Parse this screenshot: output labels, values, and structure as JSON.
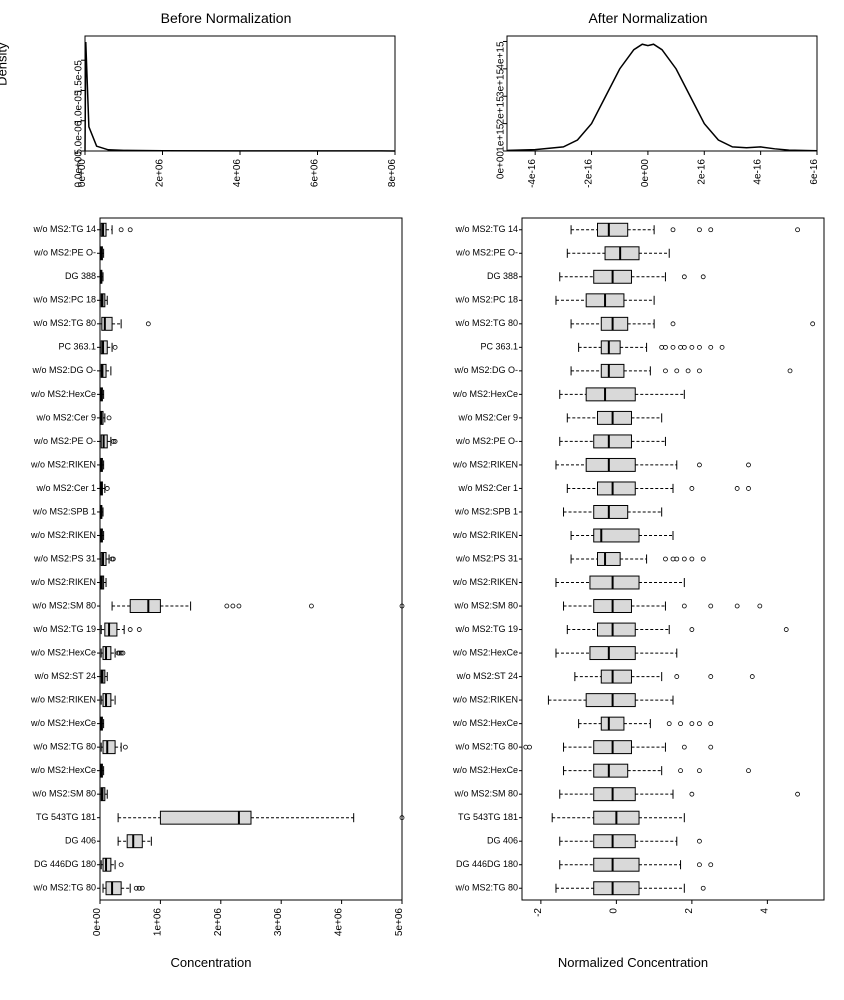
{
  "titles": {
    "before": "Before Normalization",
    "after": "After Normalization",
    "density_y": "Density",
    "concentration": "Concentration",
    "normalized": "Normalized Concentration"
  },
  "density_before": {
    "type": "line",
    "xlim": [
      0,
      8000000.0
    ],
    "ylim": [
      0,
      1.9e-05
    ],
    "xticks": [
      "0e+00",
      "2e+06",
      "4e+06",
      "6e+06",
      "8e+06"
    ],
    "yticks": [
      "0.0e+00",
      "5.0e-06",
      "1.0e-05",
      "1.5e-05"
    ],
    "ytick_vals": [
      0,
      5e-06,
      1e-05,
      1.5e-05
    ],
    "xtick_vals": [
      0,
      2000000.0,
      4000000.0,
      6000000.0,
      8000000.0
    ],
    "points": [
      [
        0,
        0
      ],
      [
        20000.0,
        1.8e-05
      ],
      [
        100000.0,
        4e-06
      ],
      [
        300000.0,
        8e-07
      ],
      [
        600000.0,
        2e-07
      ],
      [
        1000000.0,
        1e-07
      ],
      [
        2000000.0,
        5e-08
      ],
      [
        4000000.0,
        2e-08
      ],
      [
        8000000.0,
        1e-08
      ]
    ],
    "line_color": "#000000",
    "background_color": "#ffffff"
  },
  "density_after": {
    "type": "line",
    "xlim": [
      -5e-16,
      6e-16
    ],
    "ylim": [
      0,
      4200000000000000.0
    ],
    "xticks": [
      "-4e-16",
      "-2e-16",
      "0e+00",
      "2e-16",
      "4e-16",
      "6e-16"
    ],
    "xtick_vals": [
      -4e-16,
      -2e-16,
      0,
      2e-16,
      4e-16,
      6e-16
    ],
    "yticks": [
      "0e+00",
      "1e+15",
      "2e+15",
      "3e+15",
      "4e+15"
    ],
    "ytick_vals": [
      0,
      1000000000000000.0,
      2000000000000000.0,
      3000000000000000.0,
      4000000000000000.0
    ],
    "points": [
      [
        -5e-16,
        20000000000000.0
      ],
      [
        -4e-16,
        50000000000000.0
      ],
      [
        -3e-16,
        150000000000000.0
      ],
      [
        -2.5e-16,
        400000000000000.0
      ],
      [
        -2e-16,
        1000000000000000.0
      ],
      [
        -1.5e-16,
        2000000000000000.0
      ],
      [
        -1e-16,
        3000000000000000.0
      ],
      [
        -5e-17,
        3700000000000000.0
      ],
      [
        -2e-17,
        3900000000000000.0
      ],
      [
        0,
        3850000000000000.0
      ],
      [
        2e-17,
        3900000000000000.0
      ],
      [
        5e-17,
        3700000000000000.0
      ],
      [
        1e-16,
        3000000000000000.0
      ],
      [
        1.5e-16,
        2000000000000000.0
      ],
      [
        2e-16,
        1000000000000000.0
      ],
      [
        2.5e-16,
        400000000000000.0
      ],
      [
        3e-16,
        150000000000000.0
      ],
      [
        3.5e-16,
        120000000000000.0
      ],
      [
        4e-16,
        150000000000000.0
      ],
      [
        4.5e-16,
        80000000000000.0
      ],
      [
        5e-16,
        30000000000000.0
      ],
      [
        6e-16,
        10000000000000.0
      ]
    ],
    "line_color": "#000000",
    "background_color": "#ffffff"
  },
  "boxplot_before": {
    "type": "boxplot",
    "xlim": [
      0,
      5000000.0
    ],
    "xticks": [
      "0e+00",
      "1e+06",
      "2e+06",
      "3e+06",
      "4e+06",
      "5e+06"
    ],
    "xtick_vals": [
      0,
      1000000.0,
      2000000.0,
      3000000.0,
      4000000.0,
      5000000.0
    ],
    "box_fill": "#d9d9d9",
    "categories": [
      "w/o MS2:TG 14",
      "w/o MS2:PE O-",
      "DG 388",
      "w/o MS2:PC 18",
      "w/o MS2:TG 80",
      "PC 363.1",
      "w/o MS2:DG O-",
      "w/o MS2:HexCe",
      "w/o MS2:Cer 9",
      "w/o MS2:PE O-",
      "w/o MS2:RIKEN",
      "w/o MS2:Cer 1",
      "w/o MS2:SPB 1",
      "w/o MS2:RIKEN",
      "w/o MS2:PS 31",
      "w/o MS2:RIKEN",
      "w/o MS2:SM 80",
      "w/o MS2:TG 19",
      "w/o MS2:HexCe",
      "w/o MS2:ST 24",
      "w/o MS2:RIKEN",
      "w/o MS2:HexCe",
      "w/o MS2:TG 80",
      "w/o MS2:HexCe",
      "w/o MS2:SM 80",
      "TG 543TG 181",
      "DG 406",
      "DG 446DG 180",
      "w/o MS2:TG 80"
    ],
    "boxes": [
      {
        "q1": 20000.0,
        "med": 50000.0,
        "q3": 100000.0,
        "lw": 0,
        "uw": 200000.0,
        "out": [
          350000.0,
          500000.0
        ]
      },
      {
        "q1": 10000.0,
        "med": 20000.0,
        "q3": 40000.0,
        "lw": 0,
        "uw": 60000.0,
        "out": []
      },
      {
        "q1": 10000.0,
        "med": 20000.0,
        "q3": 30000.0,
        "lw": 0,
        "uw": 50000.0,
        "out": []
      },
      {
        "q1": 20000.0,
        "med": 40000.0,
        "q3": 80000.0,
        "lw": 0,
        "uw": 120000.0,
        "out": []
      },
      {
        "q1": 30000.0,
        "med": 80000.0,
        "q3": 200000.0,
        "lw": 0,
        "uw": 350000.0,
        "out": [
          800000.0
        ]
      },
      {
        "q1": 20000.0,
        "med": 50000.0,
        "q3": 120000.0,
        "lw": 0,
        "uw": 200000.0,
        "out": [
          250000.0
        ]
      },
      {
        "q1": 20000.0,
        "med": 40000.0,
        "q3": 100000.0,
        "lw": 0,
        "uw": 180000.0,
        "out": []
      },
      {
        "q1": 10000.0,
        "med": 20000.0,
        "q3": 40000.0,
        "lw": 0,
        "uw": 60000.0,
        "out": []
      },
      {
        "q1": 10000.0,
        "med": 20000.0,
        "q3": 50000.0,
        "lw": 0,
        "uw": 80000.0,
        "out": [
          150000.0
        ]
      },
      {
        "q1": 20000.0,
        "med": 60000.0,
        "q3": 120000.0,
        "lw": 0,
        "uw": 180000.0,
        "out": [
          220000.0,
          250000.0
        ]
      },
      {
        "q1": 10000.0,
        "med": 20000.0,
        "q3": 40000.0,
        "lw": 0,
        "uw": 60000.0,
        "out": []
      },
      {
        "q1": 10000.0,
        "med": 20000.0,
        "q3": 40000.0,
        "lw": 0,
        "uw": 80000.0,
        "out": [
          120000.0
        ]
      },
      {
        "q1": 10000.0,
        "med": 20000.0,
        "q3": 30000.0,
        "lw": 0,
        "uw": 50000.0,
        "out": []
      },
      {
        "q1": 10000.0,
        "med": 20000.0,
        "q3": 40000.0,
        "lw": 0,
        "uw": 60000.0,
        "out": []
      },
      {
        "q1": 20000.0,
        "med": 50000.0,
        "q3": 100000.0,
        "lw": 0,
        "uw": 150000.0,
        "out": [
          200000.0,
          220000.0
        ]
      },
      {
        "q1": 10000.0,
        "med": 30000.0,
        "q3": 60000.0,
        "lw": 0,
        "uw": 100000.0,
        "out": []
      },
      {
        "q1": 500000.0,
        "med": 800000.0,
        "q3": 1000000.0,
        "lw": 200000.0,
        "uw": 1500000.0,
        "out": [
          2100000.0,
          2200000.0,
          2300000.0,
          3500000.0,
          5000000.0
        ]
      },
      {
        "q1": 80000.0,
        "med": 150000.0,
        "q3": 280000.0,
        "lw": 20000.0,
        "uw": 400000.0,
        "out": [
          500000.0,
          650000.0
        ]
      },
      {
        "q1": 50000.0,
        "med": 100000.0,
        "q3": 180000.0,
        "lw": 20000.0,
        "uw": 250000.0,
        "out": [
          300000.0,
          320000.0,
          350000.0,
          380000.0
        ]
      },
      {
        "q1": 20000.0,
        "med": 40000.0,
        "q3": 80000.0,
        "lw": 0,
        "uw": 120000.0,
        "out": []
      },
      {
        "q1": 50000.0,
        "med": 100000.0,
        "q3": 180000.0,
        "lw": 20000.0,
        "uw": 250000.0,
        "out": []
      },
      {
        "q1": 10000.0,
        "med": 20000.0,
        "q3": 40000.0,
        "lw": 0,
        "uw": 60000.0,
        "out": []
      },
      {
        "q1": 50000.0,
        "med": 120000.0,
        "q3": 250000.0,
        "lw": 20000.0,
        "uw": 350000.0,
        "out": [
          420000.0
        ]
      },
      {
        "q1": 10000.0,
        "med": 20000.0,
        "q3": 40000.0,
        "lw": 0,
        "uw": 60000.0,
        "out": []
      },
      {
        "q1": 20000.0,
        "med": 40000.0,
        "q3": 80000.0,
        "lw": 0,
        "uw": 120000.0,
        "out": []
      },
      {
        "q1": 1000000.0,
        "med": 2300000.0,
        "q3": 2500000.0,
        "lw": 300000.0,
        "uw": 4200000.0,
        "out": [
          5000000.0
        ]
      },
      {
        "q1": 450000.0,
        "med": 550000.0,
        "q3": 700000.0,
        "lw": 300000.0,
        "uw": 850000.0,
        "out": []
      },
      {
        "q1": 50000.0,
        "med": 100000.0,
        "q3": 180000.0,
        "lw": 20000.0,
        "uw": 250000.0,
        "out": [
          350000.0
        ]
      },
      {
        "q1": 100000.0,
        "med": 200000.0,
        "q3": 350000.0,
        "lw": 50000.0,
        "uw": 500000.0,
        "out": [
          600000.0,
          650000.0,
          700000.0
        ]
      }
    ]
  },
  "boxplot_after": {
    "type": "boxplot",
    "xlim": [
      -2.5,
      5.5
    ],
    "xticks": [
      "-2",
      "0",
      "2",
      "4"
    ],
    "xtick_vals": [
      -2,
      0,
      2,
      4
    ],
    "box_fill": "#d9d9d9",
    "categories": [
      "w/o MS2:TG 14",
      "w/o MS2:PE O-",
      "DG 388",
      "w/o MS2:PC 18",
      "w/o MS2:TG 80",
      "PC 363.1",
      "w/o MS2:DG O-",
      "w/o MS2:HexCe",
      "w/o MS2:Cer 9",
      "w/o MS2:PE O-",
      "w/o MS2:RIKEN",
      "w/o MS2:Cer 1",
      "w/o MS2:SPB 1",
      "w/o MS2:RIKEN",
      "w/o MS2:PS 31",
      "w/o MS2:RIKEN",
      "w/o MS2:SM 80",
      "w/o MS2:TG 19",
      "w/o MS2:HexCe",
      "w/o MS2:ST 24",
      "w/o MS2:RIKEN",
      "w/o MS2:HexCe",
      "w/o MS2:TG 80",
      "w/o MS2:HexCe",
      "w/o MS2:SM 80",
      "TG 543TG 181",
      "DG 406",
      "DG 446DG 180",
      "w/o MS2:TG 80"
    ],
    "boxes": [
      {
        "q1": -0.5,
        "med": -0.2,
        "q3": 0.3,
        "lw": -1.2,
        "uw": 1,
        "out": [
          1.5,
          2.2,
          2.5,
          4.8
        ]
      },
      {
        "q1": -0.3,
        "med": 0.1,
        "q3": 0.6,
        "lw": -1.3,
        "uw": 1.4,
        "out": []
      },
      {
        "q1": -0.6,
        "med": -0.1,
        "q3": 0.4,
        "lw": -1.5,
        "uw": 1.3,
        "out": [
          1.8,
          2.3
        ]
      },
      {
        "q1": -0.8,
        "med": -0.3,
        "q3": 0.2,
        "lw": -1.6,
        "uw": 1,
        "out": []
      },
      {
        "q1": -0.4,
        "med": -0.1,
        "q3": 0.3,
        "lw": -1.2,
        "uw": 1,
        "out": [
          1.5,
          5.2
        ]
      },
      {
        "q1": -0.4,
        "med": -0.2,
        "q3": 0.1,
        "lw": -1,
        "uw": 0.8,
        "out": [
          1.2,
          1.3,
          1.5,
          1.7,
          1.8,
          2,
          2.2,
          2.5,
          2.8
        ]
      },
      {
        "q1": -0.4,
        "med": -0.2,
        "q3": 0.2,
        "lw": -1.2,
        "uw": 0.9,
        "out": [
          1.3,
          1.6,
          1.9,
          2.2,
          4.6
        ]
      },
      {
        "q1": -0.8,
        "med": -0.3,
        "q3": 0.5,
        "lw": -1.5,
        "uw": 1.8,
        "out": []
      },
      {
        "q1": -0.5,
        "med": -0.1,
        "q3": 0.4,
        "lw": -1.3,
        "uw": 1.2,
        "out": []
      },
      {
        "q1": -0.6,
        "med": -0.2,
        "q3": 0.4,
        "lw": -1.5,
        "uw": 1.3,
        "out": []
      },
      {
        "q1": -0.8,
        "med": -0.2,
        "q3": 0.5,
        "lw": -1.6,
        "uw": 1.6,
        "out": [
          2.2,
          3.5
        ]
      },
      {
        "q1": -0.5,
        "med": -0.1,
        "q3": 0.5,
        "lw": -1.3,
        "uw": 1.5,
        "out": [
          2,
          3.2,
          3.5
        ]
      },
      {
        "q1": -0.6,
        "med": -0.2,
        "q3": 0.3,
        "lw": -1.4,
        "uw": 1.2,
        "out": []
      },
      {
        "q1": -0.6,
        "med": -0.4,
        "q3": 0.6,
        "lw": -1.2,
        "uw": 1.5,
        "out": []
      },
      {
        "q1": -0.5,
        "med": -0.3,
        "q3": 0.1,
        "lw": -1.2,
        "uw": 0.8,
        "out": [
          1.3,
          1.5,
          1.6,
          1.8,
          2,
          2.3
        ]
      },
      {
        "q1": -0.7,
        "med": -0.1,
        "q3": 0.6,
        "lw": -1.6,
        "uw": 1.8,
        "out": []
      },
      {
        "q1": -0.6,
        "med": -0.1,
        "q3": 0.4,
        "lw": -1.4,
        "uw": 1.3,
        "out": [
          1.8,
          2.5,
          3.2,
          3.8
        ]
      },
      {
        "q1": -0.5,
        "med": -0.1,
        "q3": 0.5,
        "lw": -1.3,
        "uw": 1.4,
        "out": [
          2,
          4.5
        ]
      },
      {
        "q1": -0.7,
        "med": -0.2,
        "q3": 0.5,
        "lw": -1.6,
        "uw": 1.6,
        "out": []
      },
      {
        "q1": -0.4,
        "med": -0.1,
        "q3": 0.4,
        "lw": -1.1,
        "uw": 1.2,
        "out": [
          1.6,
          2.5,
          3.6
        ]
      },
      {
        "q1": -0.8,
        "med": -0.1,
        "q3": 0.5,
        "lw": -1.8,
        "uw": 1.5,
        "out": []
      },
      {
        "q1": -0.4,
        "med": -0.2,
        "q3": 0.2,
        "lw": -1,
        "uw": 0.9,
        "out": [
          1.4,
          1.7,
          2,
          2.2,
          2.5
        ]
      },
      {
        "q1": -0.6,
        "med": -0.1,
        "q3": 0.4,
        "lw": -1.4,
        "uw": 1.3,
        "out": [
          -2.4,
          -2.3,
          1.8,
          2.5
        ]
      },
      {
        "q1": -0.6,
        "med": -0.2,
        "q3": 0.3,
        "lw": -1.4,
        "uw": 1.2,
        "out": [
          1.7,
          2.2,
          3.5
        ]
      },
      {
        "q1": -0.6,
        "med": -0.1,
        "q3": 0.5,
        "lw": -1.5,
        "uw": 1.5,
        "out": [
          2,
          4.8
        ]
      },
      {
        "q1": -0.6,
        "med": 0,
        "q3": 0.6,
        "lw": -1.7,
        "uw": 1.8,
        "out": []
      },
      {
        "q1": -0.6,
        "med": -0.1,
        "q3": 0.5,
        "lw": -1.5,
        "uw": 1.6,
        "out": [
          2.2
        ]
      },
      {
        "q1": -0.6,
        "med": -0.1,
        "q3": 0.6,
        "lw": -1.5,
        "uw": 1.7,
        "out": [
          2.2,
          2.5
        ]
      },
      {
        "q1": -0.6,
        "med": -0.1,
        "q3": 0.6,
        "lw": -1.6,
        "uw": 1.8,
        "out": [
          2.3
        ]
      }
    ]
  }
}
